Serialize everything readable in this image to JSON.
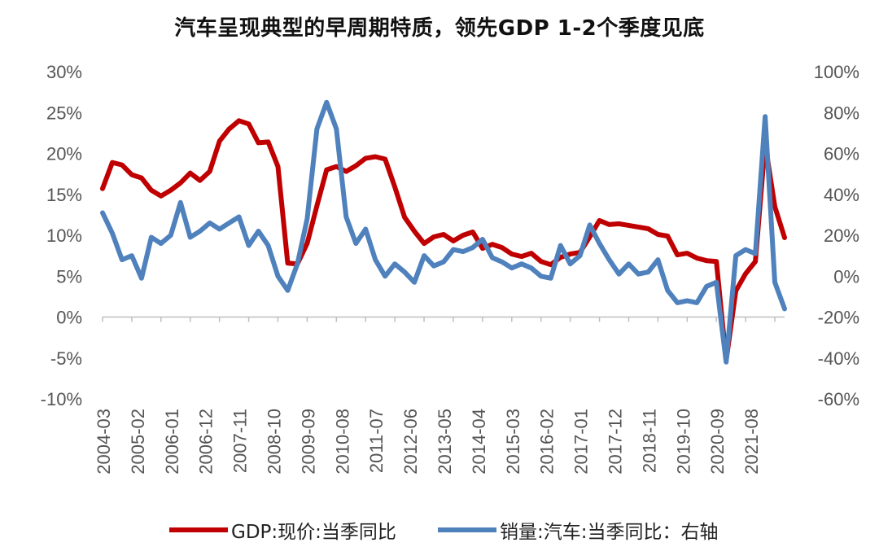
{
  "chart_data": {
    "type": "line",
    "title": "汽车呈现典型的早周期特质，领先GDP 1-2个季度见底",
    "x_tick_labels": [
      "2004-03",
      "2005-02",
      "2006-01",
      "2006-12",
      "2007-11",
      "2008-10",
      "2009-09",
      "2010-08",
      "2011-07",
      "2012-06",
      "2013-05",
      "2014-04",
      "2015-03",
      "2016-02",
      "2017-01",
      "2017-12",
      "2018-11",
      "2019-10",
      "2020-09",
      "2021-08"
    ],
    "left_axis": {
      "ticks": [
        "30%",
        "25%",
        "20%",
        "15%",
        "10%",
        "5%",
        "0%",
        "-5%",
        "-10%"
      ],
      "ylim": [
        -10,
        30
      ],
      "unit": "%"
    },
    "right_axis": {
      "ticks": [
        "100%",
        "80%",
        "60%",
        "40%",
        "20%",
        "0%",
        "-20%",
        "-40%",
        "-60%"
      ],
      "ylim": [
        -60,
        100
      ],
      "unit": "%"
    },
    "series": [
      {
        "name": "GDP:现价:当季同比",
        "axis": "left",
        "color": "#c00000",
        "start": "2004-03",
        "frequency": "quarterly",
        "values": [
          15.7,
          18.9,
          18.6,
          17.4,
          17.0,
          15.5,
          14.8,
          15.5,
          16.4,
          17.6,
          16.7,
          17.8,
          21.5,
          23.0,
          24.0,
          23.6,
          21.3,
          21.4,
          18.4,
          6.6,
          6.5,
          9.0,
          13.6,
          18.0,
          18.4,
          17.8,
          18.5,
          19.4,
          19.6,
          19.3,
          15.9,
          12.2,
          10.5,
          9.0,
          9.8,
          10.1,
          9.3,
          10.0,
          10.4,
          8.4,
          8.9,
          8.5,
          7.7,
          7.4,
          7.8,
          6.8,
          6.4,
          7.3,
          7.7,
          7.9,
          9.8,
          11.8,
          11.3,
          11.4,
          11.2,
          11.0,
          10.8,
          10.1,
          9.9,
          7.6,
          7.8,
          7.2,
          6.9,
          6.8,
          -5.3,
          3.2,
          5.3,
          6.8,
          21.2,
          13.5,
          9.7
        ]
      },
      {
        "name": "销量:汽车:当季同比：右轴",
        "axis": "right",
        "color": "#4f81bd",
        "start": "2004-03",
        "frequency": "quarterly",
        "values": [
          31,
          21,
          8,
          10,
          -1,
          19,
          16,
          20,
          36,
          19,
          22,
          26,
          23,
          26,
          29,
          15,
          22,
          15,
          0,
          -7,
          6,
          28,
          72,
          85,
          72,
          29,
          16,
          23,
          8,
          0,
          6,
          2,
          -3,
          10,
          5,
          7,
          13,
          12,
          14,
          18,
          9,
          7,
          4,
          6,
          4,
          0,
          -1,
          15,
          6,
          10,
          25,
          16,
          8,
          1,
          6,
          1,
          2,
          8,
          -7,
          -13,
          -12,
          -13,
          -5,
          -3,
          -42,
          10,
          13,
          11,
          78,
          -3,
          -16
        ]
      }
    ],
    "legend": [
      "GDP:现价:当季同比",
      "销量:汽车:当季同比：右轴"
    ]
  }
}
